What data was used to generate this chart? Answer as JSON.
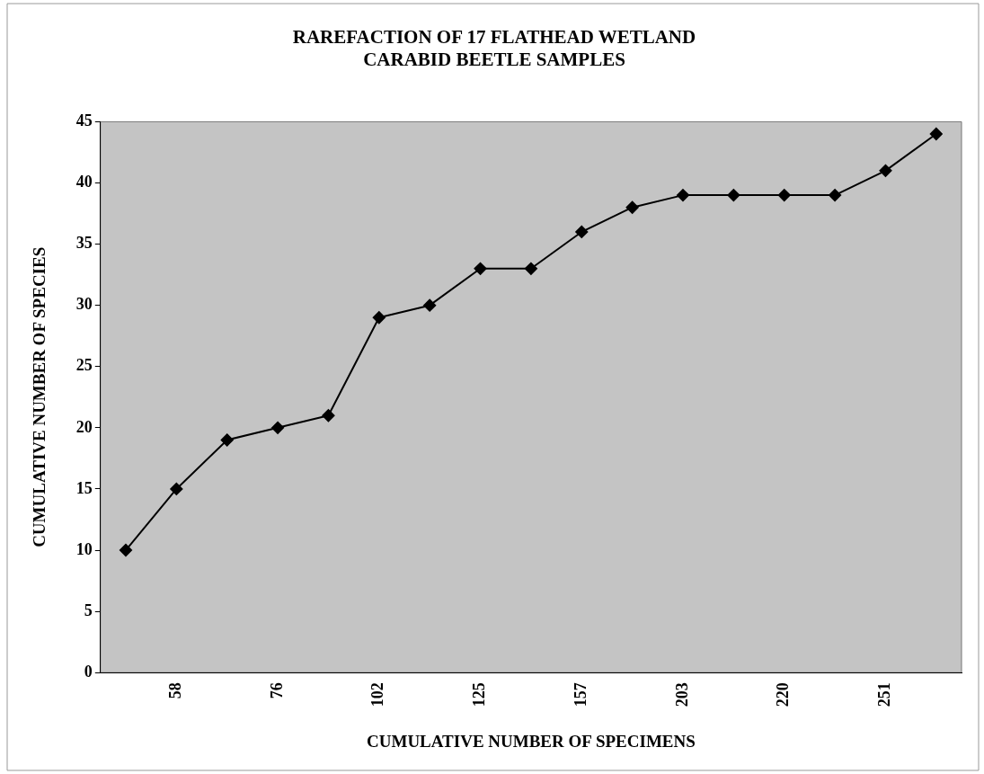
{
  "chart_data": {
    "type": "line",
    "title": "RAREFACTION OF 17 FLATHEAD WETLAND CARABID BEETLE SAMPLES",
    "xlabel": "CUMULATIVE NUMBER OF SPECIMENS",
    "ylabel": "CUMULATIVE NUMBER OF SPECIES",
    "categories": [
      null,
      "58",
      null,
      "76",
      null,
      "102",
      null,
      "125",
      null,
      "157",
      null,
      "203",
      null,
      "220",
      null,
      "251",
      null
    ],
    "series": [
      {
        "color": "#000000",
        "values": [
          10,
          15,
          19,
          20,
          21,
          29,
          30,
          33,
          33,
          36,
          38,
          39,
          39,
          39,
          39,
          41,
          44
        ]
      }
    ],
    "ylim": [
      0,
      45
    ],
    "yticks": [
      0,
      5,
      10,
      15,
      20,
      25,
      30,
      35,
      40,
      45
    ],
    "grid": false,
    "legend": false,
    "marker": "diamond",
    "line_style": "solid"
  }
}
